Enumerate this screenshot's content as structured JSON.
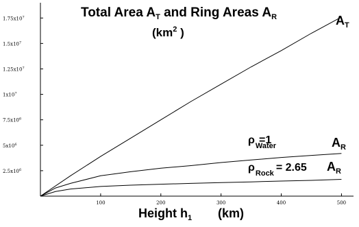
{
  "chart_data": {
    "type": "line",
    "title": {
      "main_1": "Total Area A",
      "sub_1": "T",
      "main_2": " and Ring Areas A",
      "sub_2": "R"
    },
    "units": {
      "open": "(km",
      "sup": "2",
      "close": " )"
    },
    "xlabel": {
      "main": "Height  h",
      "sub": "1",
      "units": "(km)"
    },
    "xlim": [
      0,
      520
    ],
    "ylim": [
      0,
      19000000
    ],
    "x_ticks": [
      {
        "value": 100,
        "label": "100"
      },
      {
        "value": 200,
        "label": "200"
      },
      {
        "value": 300,
        "label": "300"
      },
      {
        "value": 400,
        "label": "400"
      },
      {
        "value": 500,
        "label": "500"
      }
    ],
    "y_ticks": [
      {
        "value": 2500000,
        "label": "2.5x10",
        "exp": "6"
      },
      {
        "value": 5000000,
        "label": "5x10",
        "exp": "6"
      },
      {
        "value": 7500000,
        "label": "7.5x10",
        "exp": "6"
      },
      {
        "value": 10000000,
        "label": "1x10",
        "exp": "7"
      },
      {
        "value": 12500000,
        "label": "1.25x10",
        "exp": "7"
      },
      {
        "value": 15000000,
        "label": "1.5x10",
        "exp": "7"
      },
      {
        "value": 17500000,
        "label": "1.75x10",
        "exp": "7"
      }
    ],
    "series": [
      {
        "label_main": "A",
        "label_sub": "T",
        "x": [
          0,
          50,
          100,
          150,
          200,
          250,
          300,
          350,
          400,
          450,
          500
        ],
        "y": [
          0,
          2000000,
          3900000,
          5700000,
          7500000,
          9300000,
          11000000,
          12700000,
          14300000,
          16000000,
          17600000
        ]
      },
      {
        "label_main": "A",
        "label_sub": "R",
        "x": [
          0,
          25,
          50,
          100,
          150,
          200,
          250,
          300,
          350,
          400,
          450,
          500
        ],
        "y": [
          0,
          800000,
          1250000,
          2000000,
          2400000,
          2750000,
          3000000,
          3300000,
          3550000,
          3800000,
          4000000,
          4200000
        ]
      },
      {
        "label_main": "A",
        "label_sub": "R",
        "x": [
          0,
          25,
          50,
          100,
          150,
          200,
          250,
          300,
          350,
          400,
          450,
          500
        ],
        "y": [
          0,
          450000,
          700000,
          950000,
          1080000,
          1170000,
          1250000,
          1330000,
          1400000,
          1480000,
          1550000,
          1650000
        ]
      }
    ],
    "annotations": {
      "water": {
        "main": "ρ",
        "sub": "Water",
        "value": "=1"
      },
      "rock": {
        "main": "ρ",
        "sub": "Rock",
        "value": "= 2.65"
      }
    }
  }
}
